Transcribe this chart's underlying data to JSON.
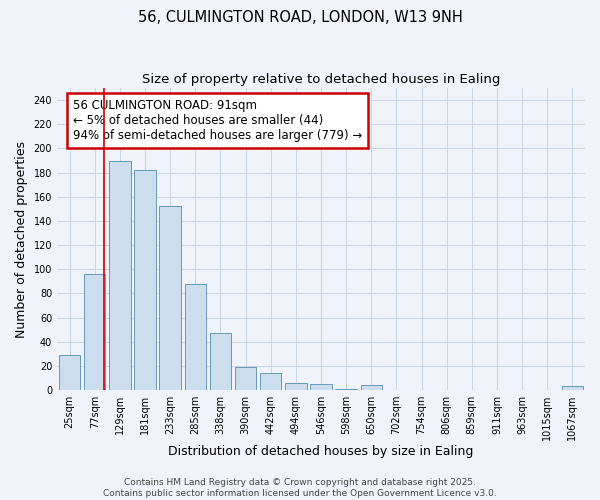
{
  "title_line1": "56, CULMINGTON ROAD, LONDON, W13 9NH",
  "title_line2": "Size of property relative to detached houses in Ealing",
  "xlabel": "Distribution of detached houses by size in Ealing",
  "ylabel": "Number of detached properties",
  "bin_labels": [
    "25sqm",
    "77sqm",
    "129sqm",
    "181sqm",
    "233sqm",
    "285sqm",
    "338sqm",
    "390sqm",
    "442sqm",
    "494sqm",
    "546sqm",
    "598sqm",
    "650sqm",
    "702sqm",
    "754sqm",
    "806sqm",
    "859sqm",
    "911sqm",
    "963sqm",
    "1015sqm",
    "1067sqm"
  ],
  "bar_heights": [
    29,
    96,
    190,
    182,
    152,
    88,
    47,
    19,
    14,
    6,
    5,
    1,
    4,
    0,
    0,
    0,
    0,
    0,
    0,
    0,
    3
  ],
  "bar_color": "#ccdded",
  "bar_edge_color": "#6699bb",
  "grid_color": "#c8d4e4",
  "bg_color": "#f0f4fa",
  "red_line_x": 1.35,
  "annotation_title": "56 CULMINGTON ROAD: 91sqm",
  "annotation_line1": "← 5% of detached houses are smaller (44)",
  "annotation_line2": "94% of semi-detached houses are larger (779) →",
  "annotation_box_color": "#ffffff",
  "annotation_border_color": "#cc0000",
  "ylim": [
    0,
    250
  ],
  "yticks": [
    0,
    20,
    40,
    60,
    80,
    100,
    120,
    140,
    160,
    180,
    200,
    220,
    240
  ],
  "title_fontsize": 10.5,
  "subtitle_fontsize": 9.5,
  "axis_label_fontsize": 9,
  "tick_fontsize": 7,
  "annotation_fontsize": 8.5,
  "footer_fontsize": 6.5
}
